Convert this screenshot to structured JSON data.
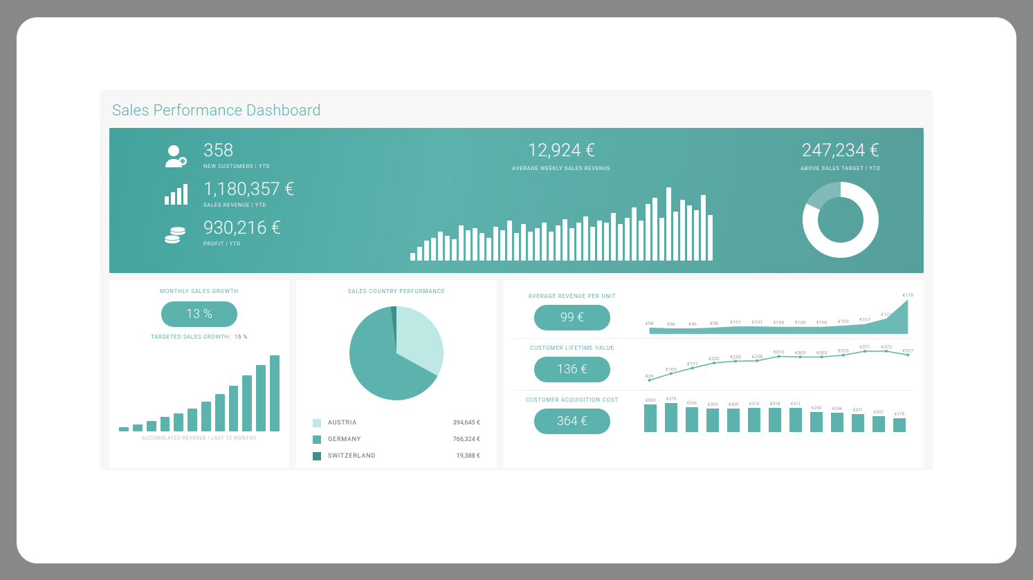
{
  "colors": {
    "teal": "#5cb2ad",
    "teal_dark": "#3f8e88",
    "teal_light": "#a9e3de",
    "teal_pale": "#bde8e4",
    "white": "#ffffff",
    "bg_outer": "#888888",
    "bg_page": "#f7f7f7",
    "text_muted": "#999999"
  },
  "title": "Sales Performance Dashboard",
  "hero": {
    "kpis": [
      {
        "icon": "user-plus",
        "value": "358",
        "label": "NEW CUSTOMERS | YTD"
      },
      {
        "icon": "bars",
        "value": "1,180,357 €",
        "label": "SALES REVENUE | YTD"
      },
      {
        "icon": "coins",
        "value": "930,216 €",
        "label": "PROFIT | YTD"
      }
    ],
    "weekly": {
      "value": "12,924 €",
      "label": "AVERAGE WEEKLY SALES REVENUE",
      "bars": [
        10,
        18,
        26,
        30,
        38,
        32,
        28,
        46,
        40,
        42,
        36,
        30,
        44,
        40,
        52,
        36,
        48,
        38,
        42,
        50,
        38,
        46,
        54,
        42,
        50,
        58,
        44,
        52,
        50,
        62,
        48,
        56,
        70,
        52,
        74,
        82,
        56,
        96,
        64,
        80,
        72,
        66,
        86,
        60
      ],
      "max": 100
    },
    "target": {
      "value": "247,234 €",
      "label": "ABOVE SALES TARGET | YTD",
      "percent": 82,
      "ring_color": "#ffffff",
      "ring_bg": "rgba(255,255,255,0.25)"
    }
  },
  "growth": {
    "title": "MONTHLY SALES GROWTH",
    "pill": "13 %",
    "sub_label": "TARGETED SALES GROWTH:",
    "sub_value": "15 %",
    "bars": [
      6,
      10,
      16,
      22,
      28,
      36,
      46,
      58,
      72,
      88,
      104,
      120
    ],
    "max": 120,
    "caption": "ACCUMULATED REVENUE | LAST 12 MONTHS"
  },
  "country": {
    "title": "SALES COUNTRY PERFORMANCE",
    "slices": [
      {
        "name": "AUSTRIA",
        "value": "394,645 €",
        "pct": 33,
        "color": "#bde8e4"
      },
      {
        "name": "GERMANY",
        "value": "766,324 €",
        "pct": 65,
        "color": "#5cb2ad"
      },
      {
        "name": "SWITZERLAND",
        "value": "19,388 €",
        "pct": 2,
        "color": "#3f8e88"
      }
    ]
  },
  "metrics": {
    "arpu": {
      "title": "AVERAGE REVENUE PER UNIT",
      "pill": "99 €",
      "points": [
        98,
        96,
        96,
        98,
        101,
        101,
        100,
        100,
        100,
        103,
        107,
        121,
        170
      ],
      "labels": [
        "€98",
        "€96",
        "€96",
        "€98",
        "€101",
        "€101",
        "€100",
        "€100",
        "€100",
        "€103",
        "€107",
        "€121",
        "€170"
      ],
      "fill": true
    },
    "clv": {
      "title": "CUSTOMER LIFETIME VALUE",
      "pill": "136 €",
      "points": [
        26,
        105,
        171,
        232,
        253,
        258,
        310,
        303,
        303,
        325,
        371,
        372,
        327
      ],
      "labels": [
        "€26",
        "€105",
        "€171",
        "€232",
        "€253",
        "€258",
        "€310",
        "€303",
        "€303",
        "€325",
        "€371",
        "€372",
        "€327"
      ],
      "fill": false
    },
    "cac": {
      "title": "CUSTOMER ACQUISITION COST",
      "pill": "364 €",
      "bars": [
        363,
        375,
        326,
        303,
        309,
        316,
        318,
        311,
        255,
        246,
        231,
        201,
        179
      ],
      "labels": [
        "€363",
        "€375",
        "€326",
        "€303",
        "€309",
        "€316",
        "€318",
        "€311",
        "€255",
        "€246",
        "€231",
        "€201",
        "€179"
      ],
      "max": 400
    }
  }
}
